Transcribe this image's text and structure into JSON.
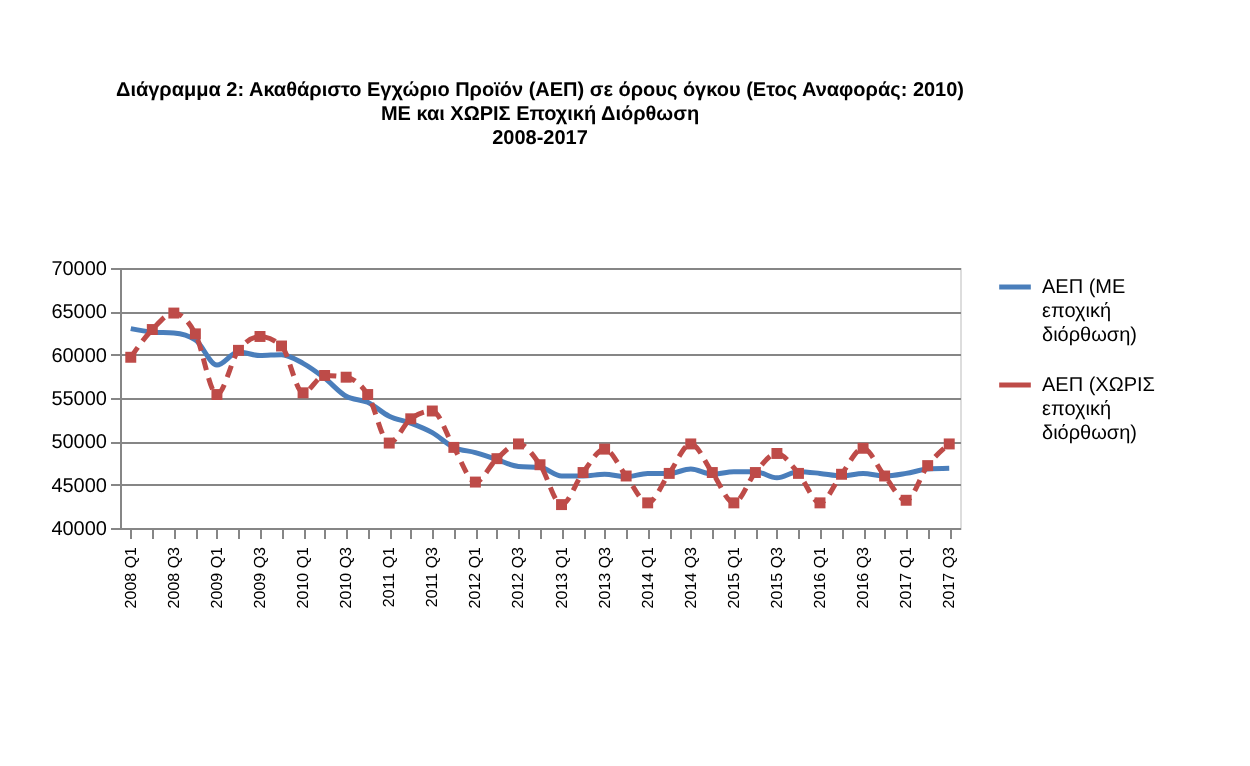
{
  "chart_data": {
    "type": "line",
    "title": [
      "Διάγραμμα 2: Ακαθάριστο Εγχώριο Προϊόν (ΑΕΠ) σε όρους όγκου (Ετος Αναφοράς: 2010)",
      "ΜΕ και ΧΩΡΙΣ Εποχική Διόρθωση",
      "2008-2017"
    ],
    "categories": [
      "2008 Q1",
      null,
      "2008 Q3",
      null,
      "2009 Q1",
      null,
      "2009 Q3",
      null,
      "2010 Q1",
      null,
      "2010 Q3",
      null,
      "2011 Q1",
      null,
      "2011 Q3",
      null,
      "2012 Q1",
      null,
      "2012 Q3",
      null,
      "2013 Q1",
      null,
      "2013 Q3",
      null,
      "2014 Q1",
      null,
      "2014 Q3",
      null,
      "2015 Q1",
      null,
      "2015 Q3",
      null,
      "2016 Q1",
      null,
      "2016 Q3",
      null,
      "2017 Q1",
      null,
      "2017 Q3"
    ],
    "series": [
      {
        "name": "ΑΕΠ (ΜΕ εποχική διόρθωση)",
        "color": "#4a7ebb",
        "marker": "none",
        "line_style": "solid",
        "values": [
          63000,
          62600,
          62500,
          61700,
          58800,
          60300,
          59900,
          60000,
          59000,
          57300,
          55200,
          54500,
          52900,
          52100,
          51000,
          49300,
          48700,
          47900,
          47100,
          47000,
          46000,
          46000,
          46200,
          45900,
          46300,
          46300,
          46800,
          46200,
          46500,
          46500,
          45800,
          46500,
          46300,
          46000,
          46300,
          46000,
          46300,
          46800,
          46900
        ]
      },
      {
        "name": "ΑΕΠ (ΧΩΡΙΣ εποχική διόρθωση)",
        "color": "#be4b48",
        "marker": "square",
        "line_style": "dashed",
        "values": [
          59700,
          62900,
          64800,
          62400,
          55400,
          60500,
          62100,
          61000,
          55600,
          57600,
          57400,
          55400,
          49800,
          52600,
          53500,
          49300,
          45300,
          48000,
          49700,
          47300,
          42700,
          46400,
          49100,
          46000,
          42900,
          46300,
          49700,
          46400,
          42900,
          46400,
          48600,
          46300,
          42900,
          46200,
          49200,
          46000,
          43200,
          47200,
          49700
        ]
      }
    ],
    "ylim": [
      40000,
      70000
    ],
    "yticks": [
      40000,
      45000,
      50000,
      55000,
      60000,
      65000,
      70000
    ],
    "grid": "y",
    "legend": "right"
  }
}
